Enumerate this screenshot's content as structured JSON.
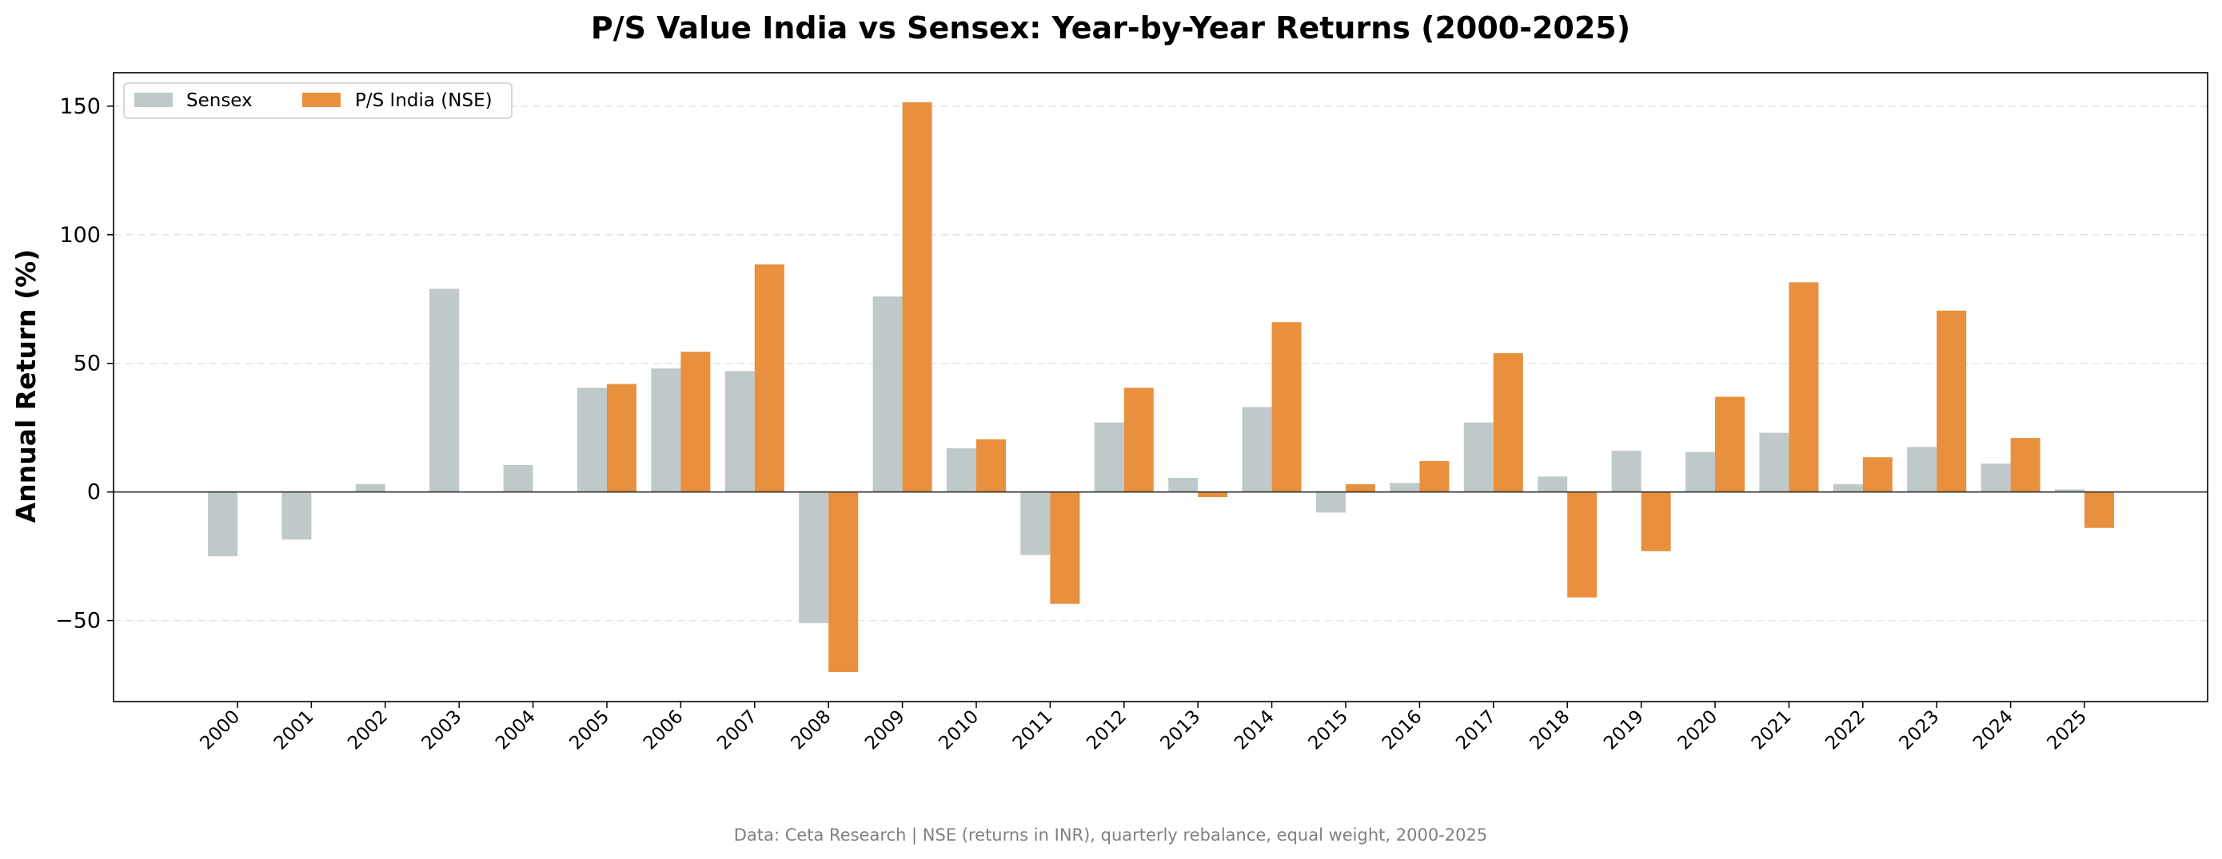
{
  "chart_data": {
    "type": "bar",
    "title": "P/S Value India vs Sensex: Year-by-Year Returns (2000-2025)",
    "xlabel": "",
    "ylabel": "Annual Return (%)",
    "ylim": [
      -81.5,
      163
    ],
    "yticks": [
      -50,
      0,
      50,
      100,
      150
    ],
    "ytick_labels": [
      "−50",
      "0",
      "50",
      "100",
      "150"
    ],
    "grid": "horizontal dashed",
    "legend_position": "top-left",
    "categories": [
      "2000",
      "2001",
      "2002",
      "2003",
      "2004",
      "2005",
      "2006",
      "2007",
      "2008",
      "2009",
      "2010",
      "2011",
      "2012",
      "2013",
      "2014",
      "2015",
      "2016",
      "2017",
      "2018",
      "2019",
      "2020",
      "2021",
      "2022",
      "2023",
      "2024",
      "2025"
    ],
    "series": [
      {
        "name": "Sensex",
        "color": "#bfc9c9",
        "values": [
          -25,
          -18.5,
          3,
          79,
          10.5,
          40.5,
          48,
          47,
          -51,
          76,
          17,
          -24.5,
          27,
          5.5,
          33,
          -8,
          3.5,
          27,
          6,
          16,
          15.5,
          23,
          3,
          17.5,
          11,
          1
        ]
      },
      {
        "name": "P/S India (NSE)",
        "color": "#e8903e",
        "values": [
          null,
          null,
          null,
          null,
          null,
          42,
          54.5,
          88.5,
          -70,
          151.5,
          20.5,
          -43.5,
          40.5,
          -2,
          66,
          3,
          12,
          54,
          -41,
          -23,
          37,
          81.5,
          13.5,
          70.5,
          21,
          -14
        ]
      }
    ],
    "footer": "Data: Ceta Research | NSE (returns in INR), quarterly rebalance, equal weight, 2000-2025"
  }
}
